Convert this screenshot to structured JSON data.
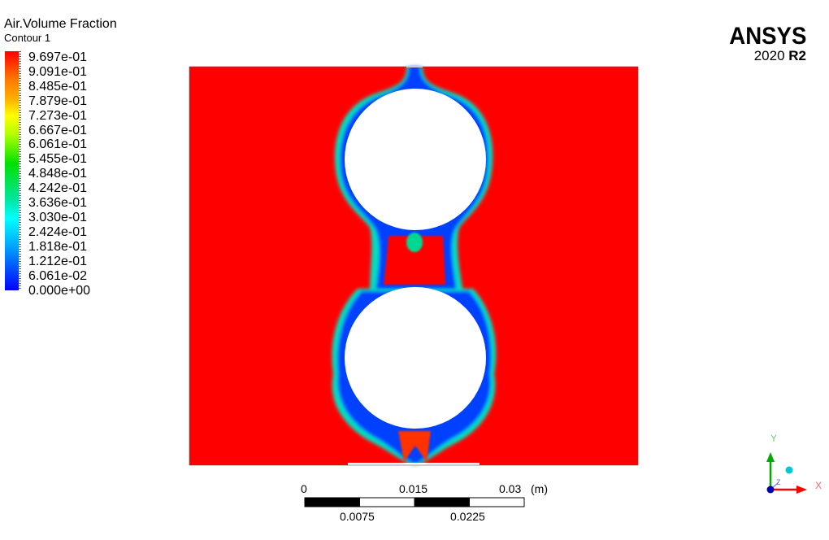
{
  "header": {
    "variable": "Air.Volume Fraction",
    "contour": "Contour 1"
  },
  "legend": {
    "labels": [
      "9.697e-01",
      "9.091e-01",
      "8.485e-01",
      "7.879e-01",
      "7.273e-01",
      "6.667e-01",
      "6.061e-01",
      "5.455e-01",
      "4.848e-01",
      "4.242e-01",
      "3.636e-01",
      "3.030e-01",
      "2.424e-01",
      "1.818e-01",
      "1.212e-01",
      "6.061e-02",
      "0.000e+00"
    ],
    "max_color": "#ff0000",
    "min_color": "#0000ff"
  },
  "logo": {
    "brand": "ANSYS",
    "version": "2020",
    "release": "R2"
  },
  "scale_bar": {
    "top_labels": [
      "0",
      "0.015",
      "0.03"
    ],
    "unit": "(m)",
    "bottom_labels": [
      "0.0075",
      "0.0225"
    ]
  },
  "axes_triad": {
    "y": "Y",
    "x": "X",
    "z": "Z",
    "y_color": "#00aa00",
    "x_color": "#ff0000",
    "z_color": "#0000cc"
  }
}
